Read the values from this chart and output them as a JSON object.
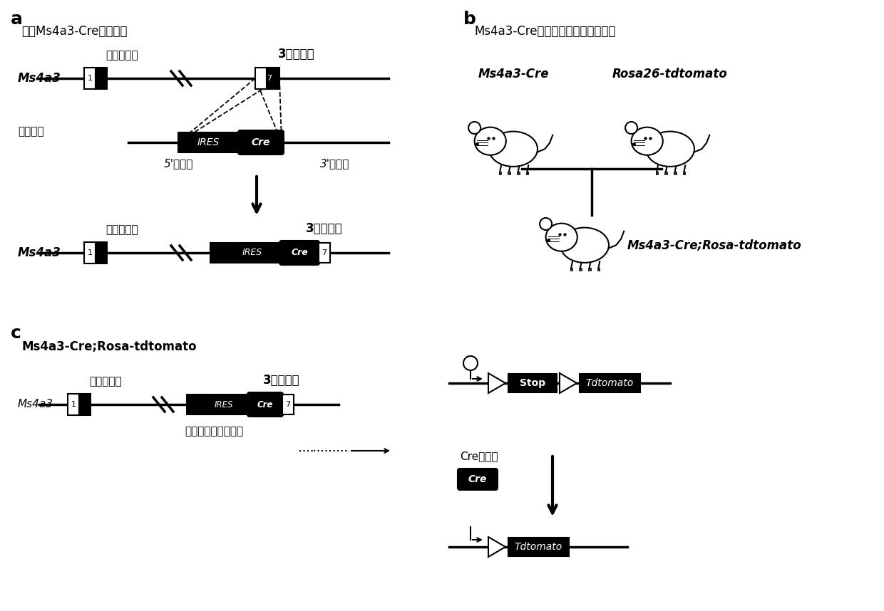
{
  "bg_color": "#ffffff",
  "fig_width": 12.4,
  "fig_height": 8.58,
  "panel_a_label": "a",
  "panel_b_label": "b",
  "panel_c_label": "c",
  "panel_a_title": "构建Ms4a3-Cre品系小鼠",
  "panel_b_title": "Ms4a3-Cre与报告品系小鼠交配策略",
  "panel_c_title": "Ms4a3-Cre;Rosa-tdtomato",
  "ms4a3_label": "Ms4a3",
  "start_codon": "起始密码子",
  "utr3": "3非翻译区",
  "targeting_vector": "打靶载体",
  "homology_5": "5'同源臂",
  "homology_3": "3'同源臂",
  "ires_label": "IRES",
  "cre_label": "Cre",
  "stop_label": "Stop",
  "tdtomato_label": "Tdtomato",
  "ms4a3_cre_label": "Ms4a3-Cre",
  "rosa26_label": "Rosa26-tdtomato",
  "offspring_label": "Ms4a3-Cre;Rosa-tdtomato",
  "internal_ribosome": "内部核糖体进入位点",
  "cre_recombinase": "Cre重组酶"
}
